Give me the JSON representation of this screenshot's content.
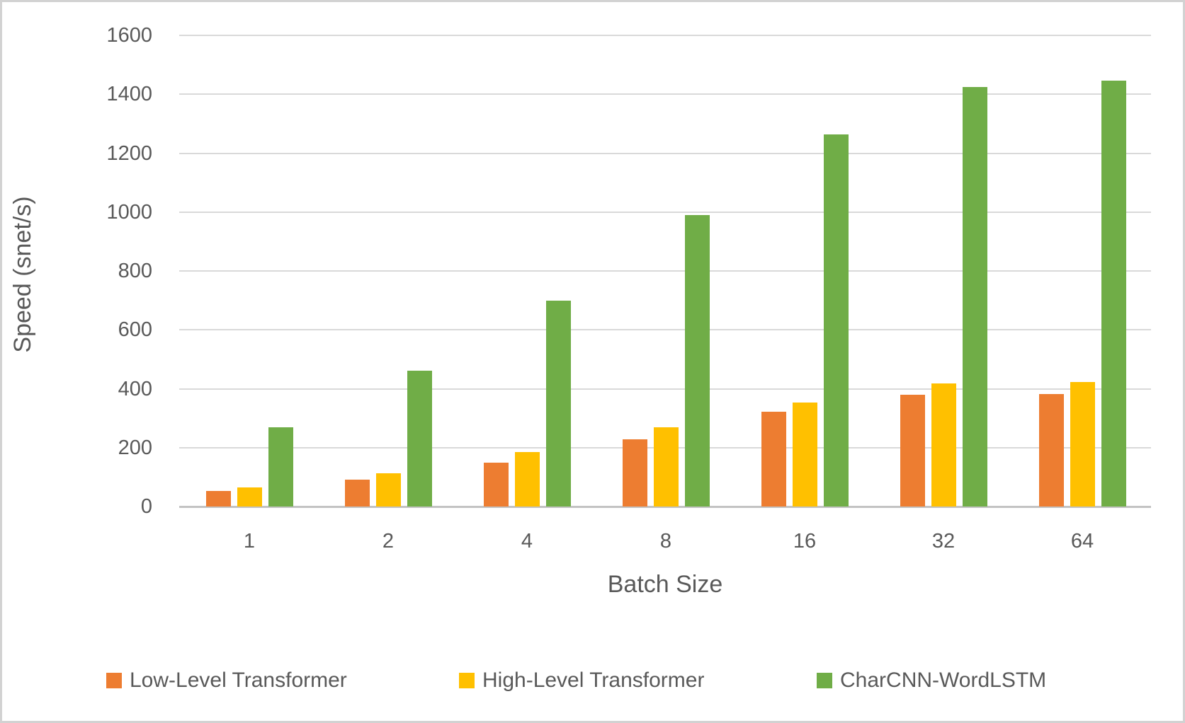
{
  "chart_data": {
    "type": "bar",
    "title": "",
    "xlabel": "Batch Size",
    "ylabel": "Speed (snet/s)",
    "categories": [
      "1",
      "2",
      "4",
      "8",
      "16",
      "32",
      "64"
    ],
    "series": [
      {
        "name": "Low-Level Transformer",
        "color": "#ED7D31",
        "values": [
          52,
          92,
          150,
          228,
          323,
          380,
          383
        ]
      },
      {
        "name": "High-Level Transformer",
        "color": "#FFC000",
        "values": [
          64,
          114,
          184,
          268,
          352,
          418,
          424
        ]
      },
      {
        "name": "CharCNN-WordLSTM",
        "color": "#70AD47",
        "values": [
          270,
          462,
          700,
          991,
          1263,
          1424,
          1446
        ]
      }
    ],
    "ylim": [
      0,
      1600
    ],
    "ytick_step": 200,
    "ytick_labels": [
      "0",
      "200",
      "400",
      "600",
      "800",
      "1000",
      "1200",
      "1400",
      "1600"
    ],
    "grid": true,
    "legend_position": "bottom",
    "colors": {
      "gridline": "#D9D9D9",
      "axis_line": "#C3C3C3",
      "text": "#595959",
      "frame_border": "#D2D2D2",
      "background": "#FFFFFF"
    }
  }
}
